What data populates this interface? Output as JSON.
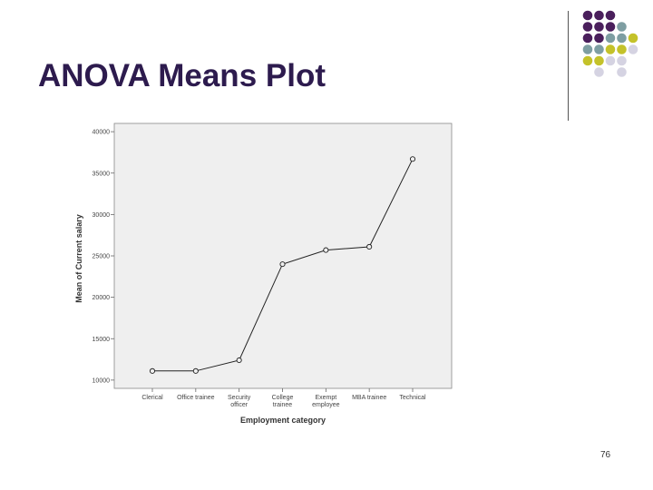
{
  "slide": {
    "title": "ANOVA Means Plot",
    "page_number": "76"
  },
  "decoration": {
    "dot_colors": {
      "purple": "#4a1f5c",
      "teal": "#7e9ea2",
      "olive": "#c4c22a",
      "lavender": "#d5d3e2"
    },
    "dot_pattern": [
      [
        "purple",
        "purple",
        "purple",
        null,
        null
      ],
      [
        "purple",
        "purple",
        "purple",
        "teal",
        null
      ],
      [
        "purple",
        "purple",
        "teal",
        "teal",
        "olive"
      ],
      [
        "teal",
        "teal",
        "olive",
        "olive",
        "lavender"
      ],
      [
        "olive",
        "olive",
        "lavender",
        "lavender",
        null
      ],
      [
        null,
        "lavender",
        null,
        "lavender",
        null
      ]
    ]
  },
  "chart_data": {
    "type": "line",
    "title": "",
    "xlabel": "Employment category",
    "ylabel": "Mean of Current salary",
    "categories": [
      [
        "Clerical"
      ],
      [
        "Office trainee"
      ],
      [
        "Security",
        "officer"
      ],
      [
        "College",
        "trainee"
      ],
      [
        "Exempt",
        "employee"
      ],
      [
        "MBA trainee"
      ],
      [
        "Technical"
      ]
    ],
    "values": [
      11100,
      11100,
      12400,
      24000,
      25700,
      26100,
      36700
    ],
    "ylim": [
      9000,
      41000
    ],
    "yticks": [
      10000,
      15000,
      20000,
      25000,
      30000,
      35000,
      40000
    ],
    "grid": false,
    "plot_background": "#efefef",
    "line_color": "#222222"
  }
}
